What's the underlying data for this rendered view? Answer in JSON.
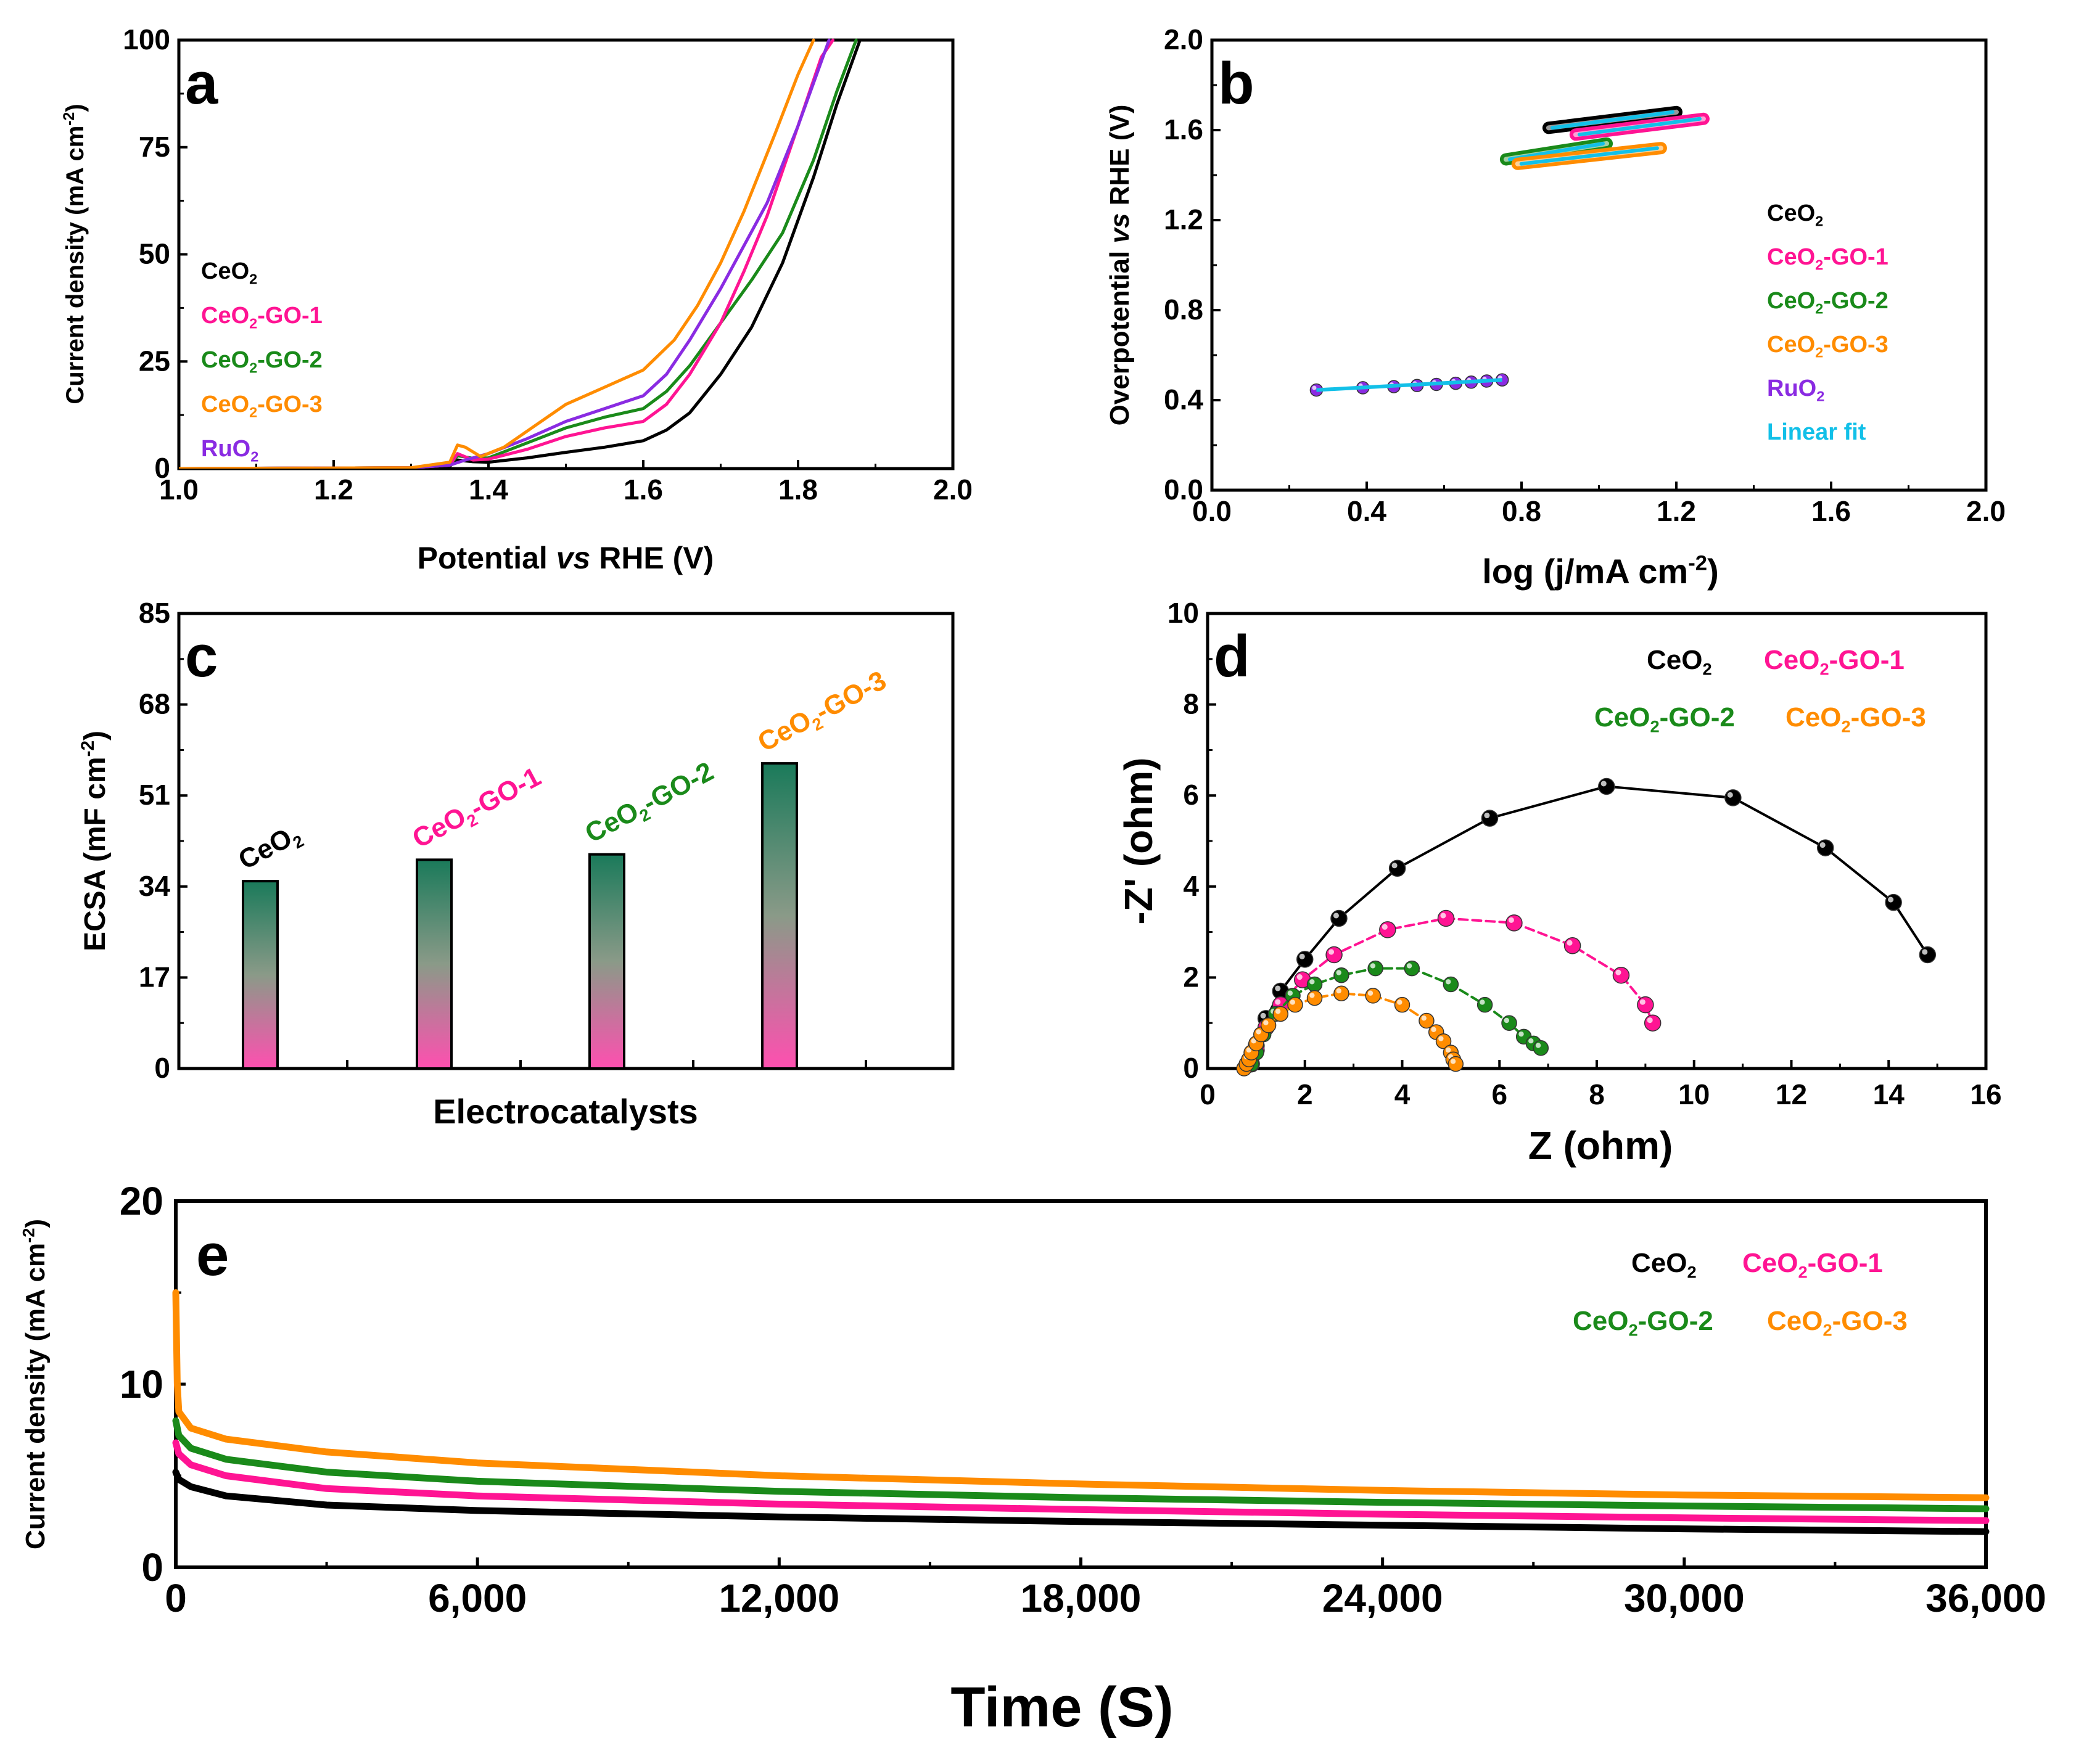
{
  "colors": {
    "CeO2": "#000000",
    "CeO2-GO-1": "#ff1493",
    "CeO2-GO-2": "#1a8a1a",
    "CeO2-GO-3": "#ff8c00",
    "RuO2": "#8a2be2",
    "Linear fit": "#12c0e8"
  },
  "chart_data": [
    {
      "panel": "a",
      "type": "line",
      "xlabel": "Potential vs RHE (V)",
      "ylabel": "Current density (mA cm-2)",
      "xlim": [
        1.0,
        2.0
      ],
      "ylim": [
        0,
        100
      ],
      "xticks": [
        "1.0",
        "1.2",
        "1.4",
        "1.6",
        "1.8",
        "2.0"
      ],
      "yticks": [
        "0",
        "25",
        "50",
        "75",
        "100"
      ],
      "legend": [
        "CeO2",
        "CeO2-GO-1",
        "CeO2-GO-2",
        "CeO2-GO-3",
        "RuO2"
      ],
      "series": [
        {
          "name": "CeO2",
          "x": [
            1.0,
            1.3,
            1.35,
            1.36,
            1.38,
            1.4,
            1.45,
            1.5,
            1.55,
            1.6,
            1.63,
            1.66,
            1.7,
            1.74,
            1.78,
            1.82,
            1.85,
            1.88
          ],
          "y": [
            0,
            0.2,
            0.6,
            2.0,
            1.6,
            1.5,
            2.5,
            3.8,
            5.0,
            6.5,
            9,
            13,
            22,
            33,
            48,
            68,
            85,
            100
          ]
        },
        {
          "name": "CeO2-GO-1",
          "x": [
            1.0,
            1.3,
            1.35,
            1.36,
            1.38,
            1.4,
            1.45,
            1.5,
            1.55,
            1.6,
            1.63,
            1.66,
            1.7,
            1.73,
            1.76,
            1.8,
            1.83,
            1.845
          ],
          "y": [
            0,
            0.2,
            0.8,
            3.5,
            2.0,
            2.2,
            4.5,
            7.5,
            9.5,
            11,
            15,
            22,
            34,
            46,
            59,
            80,
            96,
            100
          ]
        },
        {
          "name": "CeO2-GO-2",
          "x": [
            1.0,
            1.3,
            1.35,
            1.36,
            1.38,
            1.4,
            1.45,
            1.5,
            1.55,
            1.6,
            1.63,
            1.66,
            1.7,
            1.74,
            1.78,
            1.82,
            1.85,
            1.875
          ],
          "y": [
            0,
            0.2,
            0.8,
            3.0,
            2.4,
            2.5,
            6.0,
            9.5,
            12,
            14,
            18,
            24,
            34,
            44,
            55,
            72,
            88,
            100
          ]
        },
        {
          "name": "CeO2-GO-3",
          "x": [
            1.0,
            1.3,
            1.35,
            1.36,
            1.37,
            1.39,
            1.42,
            1.46,
            1.5,
            1.55,
            1.6,
            1.64,
            1.67,
            1.7,
            1.73,
            1.77,
            1.8,
            1.82
          ],
          "y": [
            0,
            0.2,
            1.5,
            5.5,
            5.0,
            2.8,
            5.0,
            10,
            15,
            19,
            23,
            30,
            38,
            48,
            60,
            78,
            92,
            100
          ]
        },
        {
          "name": "RuO2",
          "x": [
            1.0,
            1.3,
            1.35,
            1.37,
            1.4,
            1.45,
            1.5,
            1.55,
            1.6,
            1.63,
            1.66,
            1.7,
            1.73,
            1.76,
            1.8,
            1.83,
            1.84
          ],
          "y": [
            0,
            0.2,
            0.8,
            2.0,
            3.5,
            7.0,
            11,
            14,
            17,
            22,
            30,
            42,
            52,
            62,
            80,
            95,
            100
          ]
        }
      ]
    },
    {
      "panel": "b",
      "type": "line",
      "xlabel": "log (j/mA cm-2)",
      "ylabel": "Overpotential vs RHE (V)",
      "xlim": [
        0.0,
        2.0
      ],
      "ylim": [
        0.0,
        2.0
      ],
      "xticks": [
        "0.0",
        "0.4",
        "0.8",
        "1.2",
        "1.6",
        "2.0"
      ],
      "yticks": [
        "0.0",
        "0.4",
        "0.8",
        "1.2",
        "1.6",
        "2.0"
      ],
      "legend": [
        "CeO2",
        "CeO2-GO-1",
        "CeO2-GO-2",
        "CeO2-GO-3",
        "RuO2",
        "Linear fit"
      ],
      "series": [
        {
          "name": "CeO2",
          "x": [
            0.87,
            1.2
          ],
          "y": [
            1.61,
            1.68
          ]
        },
        {
          "name": "CeO2-GO-1",
          "x": [
            0.94,
            1.27
          ],
          "y": [
            1.58,
            1.65
          ]
        },
        {
          "name": "CeO2-GO-2",
          "x": [
            0.76,
            1.02
          ],
          "y": [
            1.47,
            1.54
          ]
        },
        {
          "name": "CeO2-GO-3",
          "x": [
            0.79,
            1.16
          ],
          "y": [
            1.45,
            1.52
          ]
        },
        {
          "name": "RuO2",
          "x": [
            0.27,
            0.39,
            0.47,
            0.53,
            0.58,
            0.63,
            0.67,
            0.71,
            0.75
          ],
          "y": [
            0.445,
            0.455,
            0.46,
            0.465,
            0.47,
            0.475,
            0.48,
            0.485,
            0.49
          ]
        },
        {
          "name": "Linear fit",
          "x": [
            0.27,
            0.75
          ],
          "y": [
            0.445,
            0.49
          ]
        }
      ]
    },
    {
      "panel": "c",
      "type": "bar",
      "xlabel": "Electrocatalysts",
      "ylabel": "ECSA (mF cm-2)",
      "ylim": [
        0,
        85
      ],
      "yticks": [
        "0",
        "17",
        "34",
        "51",
        "68",
        "85"
      ],
      "categories": [
        "CeO2",
        "CeO2-GO-1",
        "CeO2-GO-2",
        "CeO2-GO-3"
      ],
      "values": [
        35,
        39,
        40,
        57
      ]
    },
    {
      "panel": "d",
      "type": "scatter",
      "xlabel": "Z (ohm)",
      "ylabel": "-Z' (ohm)",
      "xlim": [
        0,
        16
      ],
      "ylim": [
        0,
        10
      ],
      "xticks": [
        "0",
        "2",
        "4",
        "6",
        "8",
        "10",
        "12",
        "14",
        "16"
      ],
      "yticks": [
        "0",
        "2",
        "4",
        "6",
        "8",
        "10"
      ],
      "legend": [
        "CeO2",
        "CeO2-GO-1",
        "CeO2-GO-2",
        "CeO2-GO-3"
      ],
      "series": [
        {
          "name": "CeO2",
          "x": [
            0.9,
            1.0,
            1.2,
            1.5,
            2.0,
            2.7,
            3.9,
            5.8,
            8.2,
            10.8,
            12.7,
            14.1,
            14.8
          ],
          "y": [
            0.1,
            0.5,
            1.1,
            1.7,
            2.4,
            3.3,
            4.4,
            5.5,
            6.2,
            5.95,
            4.85,
            3.65,
            2.5
          ]
        },
        {
          "name": "CeO2-GO-1",
          "x": [
            0.9,
            1.0,
            1.2,
            1.5,
            1.95,
            2.6,
            3.7,
            4.9,
            6.3,
            7.5,
            8.5,
            9.0,
            9.15
          ],
          "y": [
            0.1,
            0.4,
            0.9,
            1.4,
            1.95,
            2.5,
            3.05,
            3.3,
            3.2,
            2.7,
            2.05,
            1.4,
            1.0
          ]
        },
        {
          "name": "CeO2-GO-2",
          "x": [
            0.9,
            1.0,
            1.15,
            1.4,
            1.75,
            2.2,
            2.75,
            3.45,
            4.2,
            5.0,
            5.7,
            6.2,
            6.5,
            6.7,
            6.85
          ],
          "y": [
            0.1,
            0.35,
            0.75,
            1.2,
            1.6,
            1.85,
            2.05,
            2.2,
            2.2,
            1.85,
            1.4,
            1.0,
            0.7,
            0.55,
            0.45
          ]
        },
        {
          "name": "CeO2-GO-3",
          "x": [
            0.75,
            0.8,
            0.85,
            0.9,
            1.0,
            1.1,
            1.25,
            1.5,
            1.8,
            2.2,
            2.75,
            3.4,
            4.0,
            4.5,
            4.7,
            4.85,
            5.0,
            5.05,
            5.1
          ],
          "y": [
            0.0,
            0.1,
            0.2,
            0.35,
            0.55,
            0.75,
            0.95,
            1.2,
            1.4,
            1.55,
            1.65,
            1.6,
            1.4,
            1.05,
            0.8,
            0.6,
            0.35,
            0.2,
            0.1
          ]
        }
      ]
    },
    {
      "panel": "e",
      "type": "line",
      "xlabel": "Time (S)",
      "ylabel": "Current density (mA cm-2)",
      "xlim": [
        0,
        36000
      ],
      "ylim": [
        0,
        20
      ],
      "xticks": [
        "0",
        "6,000",
        "12,000",
        "18,000",
        "24,000",
        "30,000",
        "36,000"
      ],
      "yticks": [
        "0",
        "10",
        "20"
      ],
      "legend": [
        "CeO2",
        "CeO2-GO-1",
        "CeO2-GO-2",
        "CeO2-GO-3"
      ],
      "series": [
        {
          "name": "CeO2",
          "x": [
            0,
            60,
            300,
            1000,
            3000,
            6000,
            12000,
            18000,
            24000,
            30000,
            36000
          ],
          "y": [
            5.2,
            4.8,
            4.4,
            3.9,
            3.4,
            3.1,
            2.75,
            2.5,
            2.3,
            2.1,
            1.95
          ]
        },
        {
          "name": "CeO2-GO-1",
          "x": [
            0,
            60,
            300,
            1000,
            3000,
            6000,
            12000,
            18000,
            24000,
            30000,
            36000
          ],
          "y": [
            6.8,
            6.2,
            5.6,
            5.0,
            4.3,
            3.9,
            3.45,
            3.15,
            2.9,
            2.7,
            2.55
          ]
        },
        {
          "name": "CeO2-GO-2",
          "x": [
            0,
            60,
            300,
            1000,
            3000,
            6000,
            12000,
            18000,
            24000,
            30000,
            36000
          ],
          "y": [
            8.0,
            7.2,
            6.5,
            5.9,
            5.2,
            4.7,
            4.15,
            3.8,
            3.55,
            3.35,
            3.2
          ]
        },
        {
          "name": "CeO2-GO-3",
          "x": [
            0,
            30,
            60,
            300,
            1000,
            3000,
            6000,
            12000,
            18000,
            24000,
            30000,
            36000
          ],
          "y": [
            15.0,
            10.0,
            8.5,
            7.6,
            7.0,
            6.3,
            5.7,
            5.0,
            4.55,
            4.2,
            3.95,
            3.8
          ]
        }
      ]
    }
  ]
}
